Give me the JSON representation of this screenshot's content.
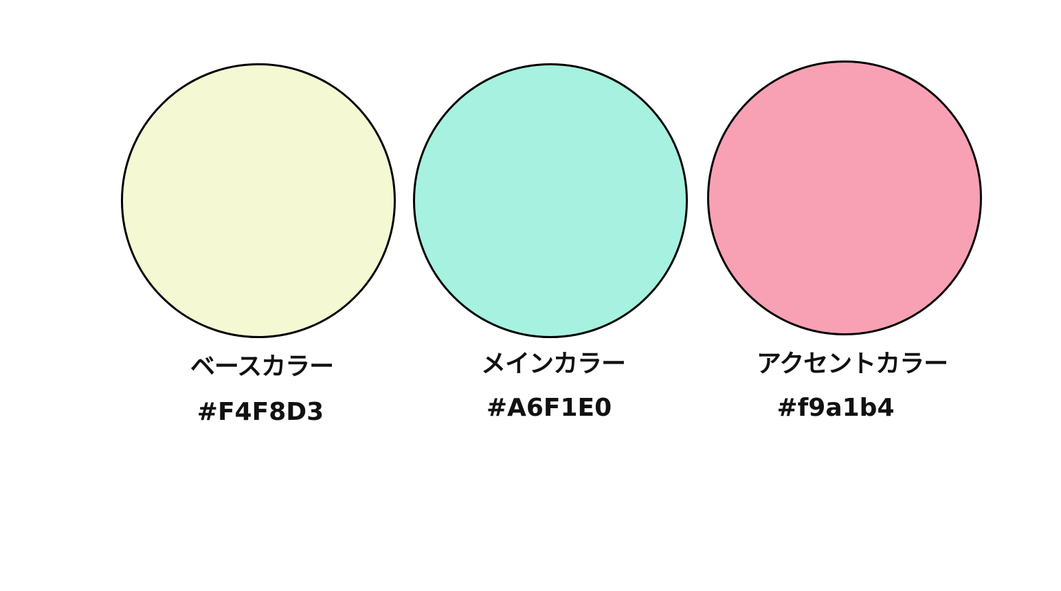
{
  "palette": [
    {
      "label": "ベースカラー",
      "hex_text": "#F4F8D3",
      "color": "#F4F8D3"
    },
    {
      "label": "メインカラー",
      "hex_text": "#A6F1E0",
      "color": "#A6F1E0"
    },
    {
      "label": "アクセントカラー",
      "hex_text": "#f9a1b4",
      "color": "#F9A1B4"
    }
  ]
}
